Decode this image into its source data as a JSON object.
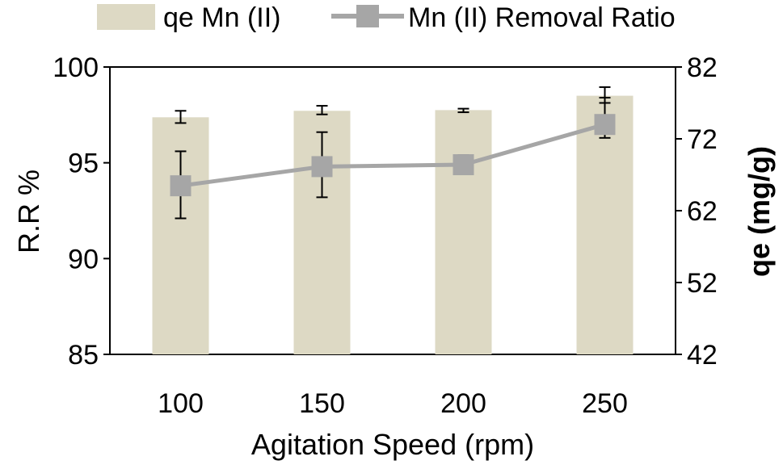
{
  "chart_data": {
    "type": "bar",
    "categories": [
      "100",
      "150",
      "200",
      "250"
    ],
    "xlabel": "Agitation Speed (rpm)",
    "y_left": {
      "label": "R.R %",
      "range": [
        85,
        100
      ],
      "ticks": [
        "85",
        "90",
        "95",
        "100"
      ]
    },
    "y_right": {
      "label": "qe (mg/g)",
      "range": [
        42,
        82
      ],
      "ticks": [
        "42",
        "52",
        "62",
        "72",
        "82"
      ]
    },
    "legend_position": "top",
    "series": [
      {
        "name": "qe Mn (II)",
        "type": "bar",
        "axis": "right",
        "color": "#ddd9c4",
        "values": [
          75.0,
          75.9,
          76.0,
          78.0
        ],
        "error": [
          [
            74.2,
            75.9
          ],
          [
            75.4,
            76.6
          ],
          [
            75.7,
            76.2
          ],
          [
            77.0,
            79.2
          ]
        ]
      },
      {
        "name": "Mn (II) Removal Ratio",
        "type": "line",
        "axis": "left",
        "color": "#a6a6a6",
        "values": [
          93.8,
          94.8,
          94.9,
          97.0
        ],
        "error": [
          [
            92.1,
            95.6
          ],
          [
            93.2,
            96.6
          ],
          [
            94.4,
            95.4
          ],
          [
            96.3,
            98.4
          ]
        ]
      }
    ],
    "grid": false
  }
}
